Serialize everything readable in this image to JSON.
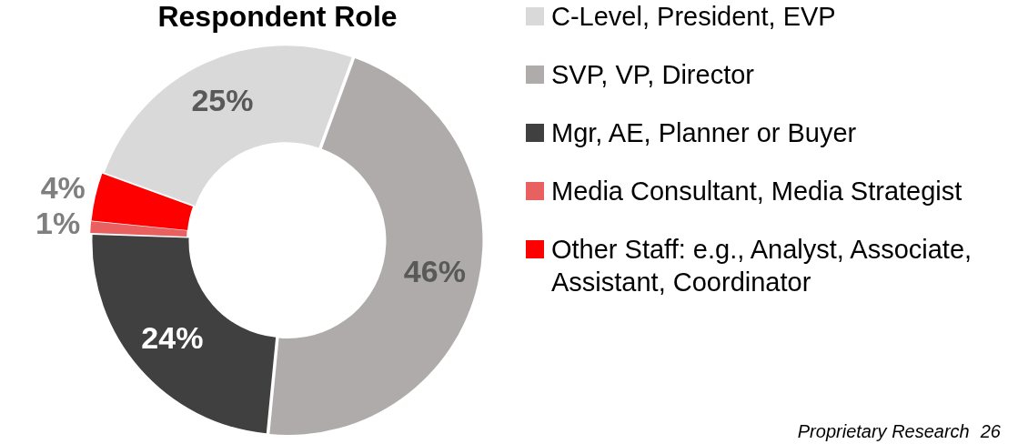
{
  "chart_data": {
    "type": "donut",
    "title": "Respondent Role",
    "categories": [
      "C-Level, President, EVP",
      "SVP, VP, Director",
      "Mgr, AE, Planner or Buyer",
      "Media Consultant, Media Strategist",
      "Other Staff: e.g., Analyst, Associate, Assistant, Coordinator"
    ],
    "values": [
      25,
      46,
      24,
      1,
      4
    ],
    "colors": [
      "#d9d9d9",
      "#afabab",
      "#404040",
      "#e86060",
      "#ff0000"
    ],
    "value_labels": [
      "25%",
      "46%",
      "24%",
      "1%",
      "4%"
    ],
    "legend": "right",
    "annotations": [
      "Proprietary Research",
      "26"
    ]
  }
}
